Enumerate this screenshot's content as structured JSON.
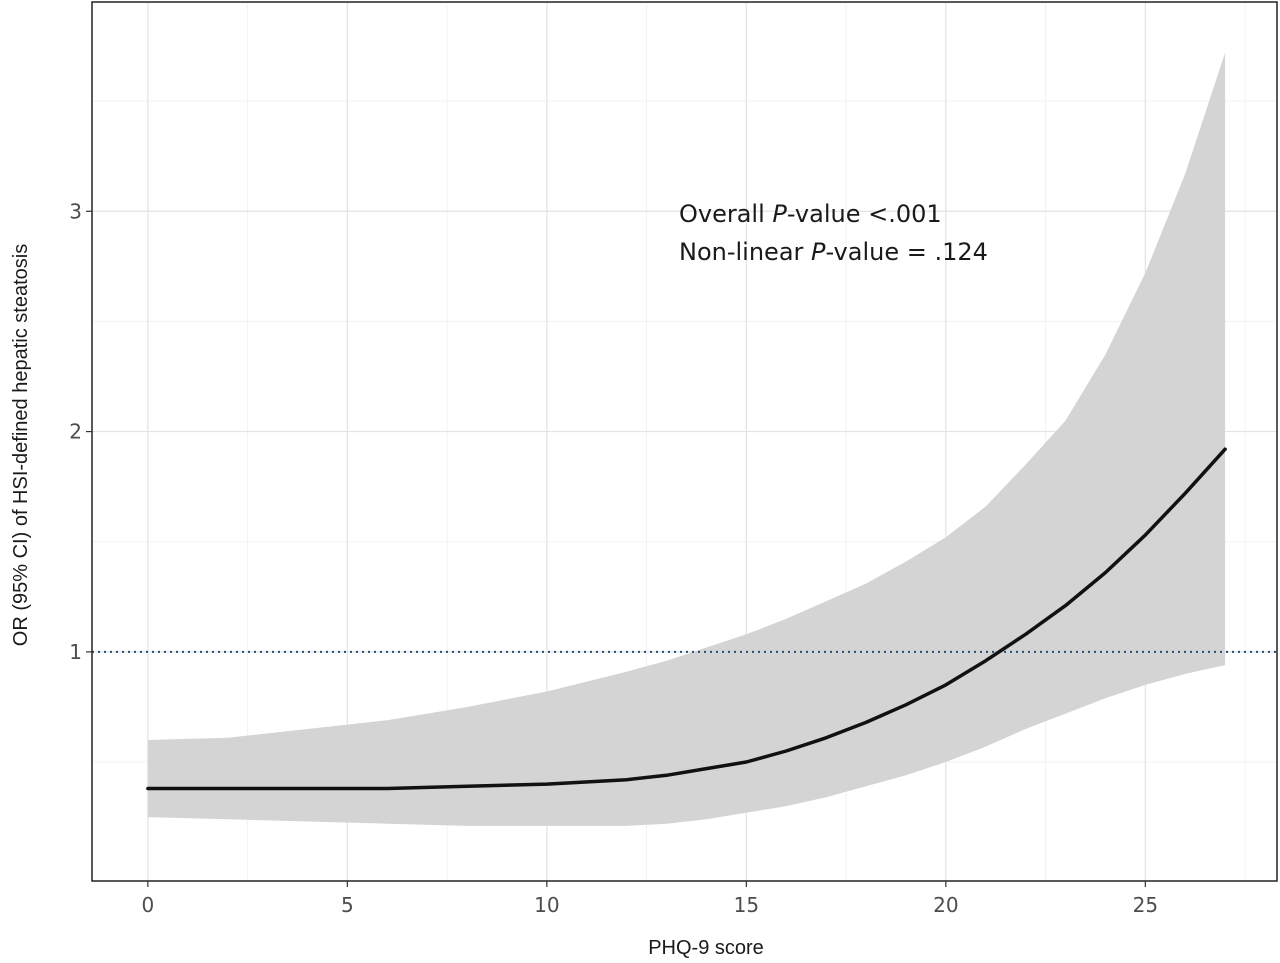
{
  "chart_data": {
    "type": "line",
    "xlabel": "PHQ-9 score",
    "ylabel": "OR (95% CI) of HSI-defined hepatic steatosis",
    "xlim": [
      -1.4,
      28.3
    ],
    "ylim": [
      -0.04,
      3.95
    ],
    "x_ticks": [
      0,
      5,
      10,
      15,
      20,
      25
    ],
    "y_ticks": [
      1,
      2,
      3
    ],
    "x_minor_grid": [
      2.5,
      7.5,
      12.5,
      17.5,
      22.5,
      27.5
    ],
    "y_minor_grid": [
      0.5,
      1.5,
      2.5,
      3.5
    ],
    "grid": true,
    "reference_line": {
      "y": 1,
      "style": "dotted",
      "color": "#1f4e79"
    },
    "series": [
      {
        "x": [
          0,
          2,
          4,
          6,
          8,
          10,
          12,
          13,
          14,
          15,
          16,
          17,
          18,
          19,
          20,
          21,
          22,
          23,
          24,
          25,
          26,
          27
        ],
        "y": [
          0.38,
          0.38,
          0.38,
          0.38,
          0.39,
          0.4,
          0.42,
          0.44,
          0.47,
          0.5,
          0.55,
          0.61,
          0.68,
          0.76,
          0.85,
          0.96,
          1.08,
          1.21,
          1.36,
          1.53,
          1.72,
          1.92
        ],
        "lower": [
          0.25,
          0.24,
          0.23,
          0.22,
          0.21,
          0.21,
          0.21,
          0.22,
          0.24,
          0.27,
          0.3,
          0.34,
          0.39,
          0.44,
          0.5,
          0.57,
          0.65,
          0.72,
          0.79,
          0.85,
          0.9,
          0.94
        ],
        "upper": [
          0.6,
          0.61,
          0.65,
          0.69,
          0.75,
          0.82,
          0.91,
          0.96,
          1.02,
          1.08,
          1.15,
          1.23,
          1.31,
          1.41,
          1.52,
          1.66,
          1.85,
          2.05,
          2.35,
          2.72,
          3.17,
          3.72
        ],
        "color": "#111111",
        "band_color": "#d4d4d4"
      }
    ],
    "annotations": [
      {
        "parts": [
          {
            "text": "Overall ",
            "italic": false
          },
          {
            "text": "P",
            "italic": true
          },
          {
            "text": "-value <.001",
            "italic": false
          }
        ]
      },
      {
        "parts": [
          {
            "text": "Non-linear ",
            "italic": false
          },
          {
            "text": "P",
            "italic": true
          },
          {
            "text": "-value = .124",
            "italic": false
          }
        ]
      }
    ]
  }
}
